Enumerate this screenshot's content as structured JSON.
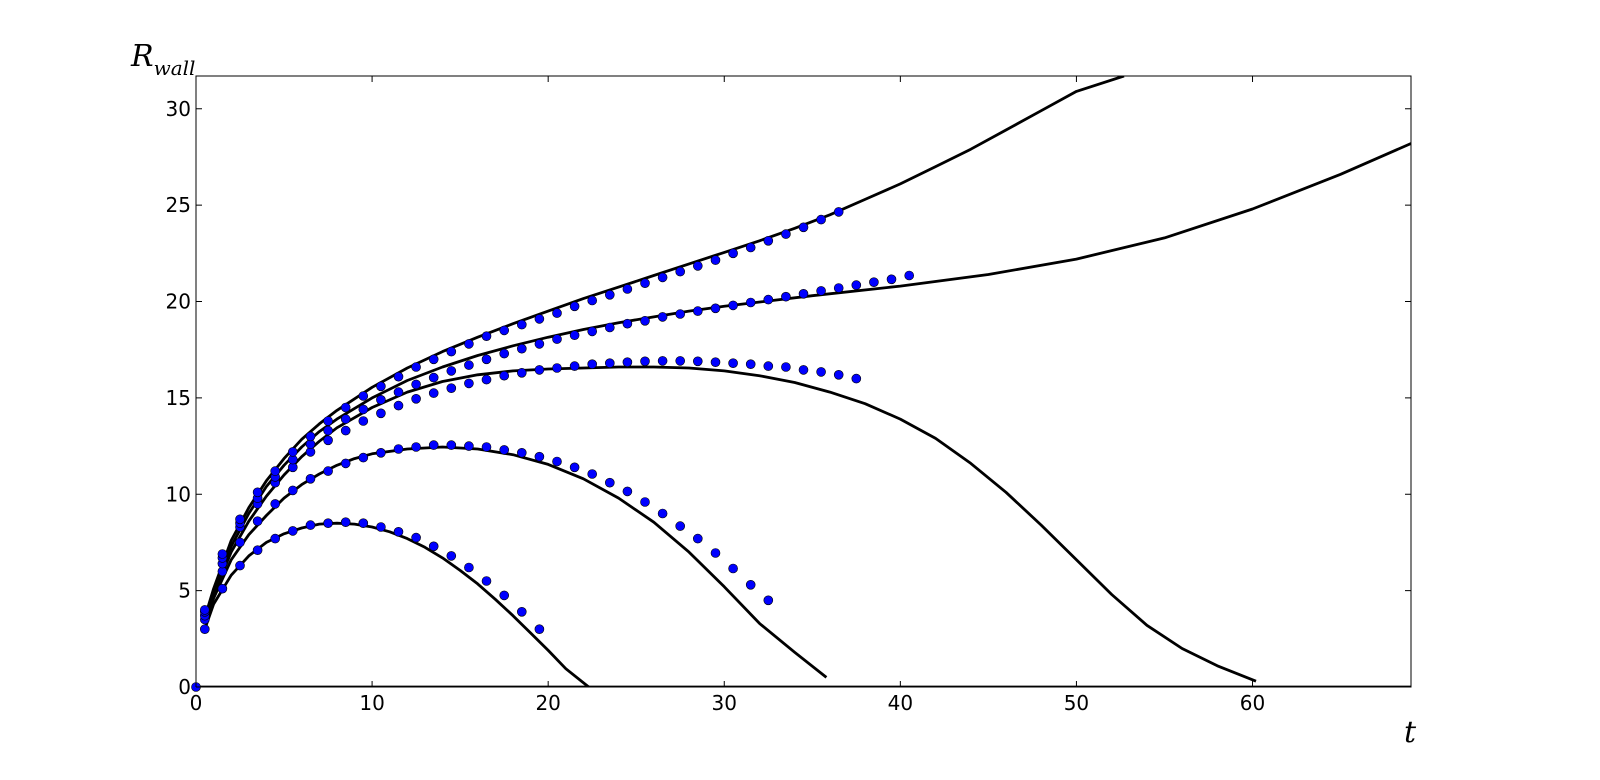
{
  "chart_data": {
    "type": "line",
    "title": "",
    "xlabel": "t",
    "ylabel_main": "R",
    "ylabel_sub": "wall",
    "xlim": [
      0,
      69
    ],
    "ylim": [
      0,
      31.7
    ],
    "xticks": [
      0,
      10,
      20,
      30,
      40,
      50,
      60
    ],
    "yticks": [
      0,
      5,
      10,
      15,
      20,
      25,
      30
    ],
    "grid": false,
    "legend": "none",
    "line_color": "#000000",
    "marker_color": "#0000ff",
    "series": [
      {
        "kind": "line",
        "points": [
          [
            0.5,
            3.0
          ],
          [
            1,
            4.3
          ],
          [
            2,
            5.8
          ],
          [
            3,
            6.8
          ],
          [
            4,
            7.5
          ],
          [
            5,
            7.95
          ],
          [
            6,
            8.25
          ],
          [
            7,
            8.45
          ],
          [
            8,
            8.5
          ],
          [
            9,
            8.45
          ],
          [
            10,
            8.3
          ],
          [
            11,
            8.05
          ],
          [
            12,
            7.7
          ],
          [
            13,
            7.25
          ],
          [
            14,
            6.7
          ],
          [
            15,
            6.05
          ],
          [
            16,
            5.35
          ],
          [
            17,
            4.55
          ],
          [
            18,
            3.7
          ],
          [
            19,
            2.8
          ],
          [
            20,
            1.9
          ],
          [
            21,
            0.95
          ],
          [
            22.3,
            0.0
          ]
        ]
      },
      {
        "kind": "scatter",
        "points": [
          [
            0.5,
            3.0
          ],
          [
            1.5,
            5.1
          ],
          [
            2.5,
            6.3
          ],
          [
            3.5,
            7.1
          ],
          [
            4.5,
            7.7
          ],
          [
            5.5,
            8.1
          ],
          [
            6.5,
            8.4
          ],
          [
            7.5,
            8.5
          ],
          [
            8.5,
            8.55
          ],
          [
            9.5,
            8.5
          ],
          [
            10.5,
            8.3
          ],
          [
            11.5,
            8.05
          ],
          [
            12.5,
            7.75
          ],
          [
            13.5,
            7.3
          ],
          [
            14.5,
            6.8
          ],
          [
            15.5,
            6.2
          ],
          [
            16.5,
            5.5
          ],
          [
            17.5,
            4.75
          ],
          [
            18.5,
            3.9
          ],
          [
            19.5,
            3.0
          ]
        ]
      },
      {
        "kind": "line",
        "points": [
          [
            0.5,
            3.3
          ],
          [
            1,
            4.6
          ],
          [
            2,
            6.6
          ],
          [
            3,
            7.9
          ],
          [
            4,
            8.9
          ],
          [
            5,
            9.8
          ],
          [
            6,
            10.5
          ],
          [
            7,
            11.05
          ],
          [
            8,
            11.5
          ],
          [
            9,
            11.85
          ],
          [
            10,
            12.1
          ],
          [
            12,
            12.35
          ],
          [
            14,
            12.45
          ],
          [
            16,
            12.35
          ],
          [
            18,
            12.05
          ],
          [
            20,
            11.55
          ],
          [
            22,
            10.8
          ],
          [
            24,
            9.8
          ],
          [
            26,
            8.55
          ],
          [
            28,
            7.0
          ],
          [
            30,
            5.2
          ],
          [
            32,
            3.3
          ],
          [
            34,
            1.8
          ],
          [
            35.8,
            0.5
          ]
        ]
      },
      {
        "kind": "scatter",
        "points": [
          [
            0.5,
            3.5
          ],
          [
            1.5,
            6.0
          ],
          [
            2.5,
            7.5
          ],
          [
            3.5,
            8.6
          ],
          [
            4.5,
            9.5
          ],
          [
            5.5,
            10.2
          ],
          [
            6.5,
            10.8
          ],
          [
            7.5,
            11.2
          ],
          [
            8.5,
            11.6
          ],
          [
            9.5,
            11.9
          ],
          [
            10.5,
            12.15
          ],
          [
            11.5,
            12.35
          ],
          [
            12.5,
            12.45
          ],
          [
            13.5,
            12.55
          ],
          [
            14.5,
            12.55
          ],
          [
            15.5,
            12.5
          ],
          [
            16.5,
            12.45
          ],
          [
            17.5,
            12.3
          ],
          [
            18.5,
            12.15
          ],
          [
            19.5,
            11.95
          ],
          [
            20.5,
            11.7
          ],
          [
            21.5,
            11.4
          ],
          [
            22.5,
            11.05
          ],
          [
            23.5,
            10.6
          ],
          [
            24.5,
            10.15
          ],
          [
            25.5,
            9.6
          ],
          [
            26.5,
            9.0
          ],
          [
            27.5,
            8.35
          ],
          [
            28.5,
            7.7
          ],
          [
            29.5,
            6.95
          ],
          [
            30.5,
            6.15
          ],
          [
            31.5,
            5.3
          ],
          [
            32.5,
            4.5
          ]
        ]
      },
      {
        "kind": "line",
        "points": [
          [
            0.5,
            3.4
          ],
          [
            1,
            4.8
          ],
          [
            2,
            7.0
          ],
          [
            3,
            8.6
          ],
          [
            4,
            9.9
          ],
          [
            5,
            11.0
          ],
          [
            6,
            11.95
          ],
          [
            7,
            12.75
          ],
          [
            8,
            13.45
          ],
          [
            10,
            14.5
          ],
          [
            12,
            15.3
          ],
          [
            14,
            15.85
          ],
          [
            16,
            16.2
          ],
          [
            18,
            16.4
          ],
          [
            20,
            16.5
          ],
          [
            22,
            16.55
          ],
          [
            24,
            16.6
          ],
          [
            26,
            16.6
          ],
          [
            28,
            16.55
          ],
          [
            30,
            16.4
          ],
          [
            32,
            16.15
          ],
          [
            34,
            15.8
          ],
          [
            36,
            15.3
          ],
          [
            38,
            14.7
          ],
          [
            40,
            13.9
          ],
          [
            42,
            12.9
          ],
          [
            44,
            11.6
          ],
          [
            46,
            10.1
          ],
          [
            48,
            8.4
          ],
          [
            50,
            6.6
          ],
          [
            52,
            4.8
          ],
          [
            54,
            3.2
          ],
          [
            56,
            2.0
          ],
          [
            58,
            1.1
          ],
          [
            60.2,
            0.3
          ]
        ]
      },
      {
        "kind": "scatter",
        "points": [
          [
            0.5,
            3.7
          ],
          [
            1.5,
            6.4
          ],
          [
            2.5,
            8.3
          ],
          [
            3.5,
            9.5
          ],
          [
            4.5,
            10.6
          ],
          [
            5.5,
            11.4
          ],
          [
            6.5,
            12.2
          ],
          [
            7.5,
            12.8
          ],
          [
            8.5,
            13.3
          ],
          [
            9.5,
            13.8
          ],
          [
            10.5,
            14.2
          ],
          [
            11.5,
            14.6
          ],
          [
            12.5,
            14.95
          ],
          [
            13.5,
            15.25
          ],
          [
            14.5,
            15.5
          ],
          [
            15.5,
            15.75
          ],
          [
            16.5,
            15.95
          ],
          [
            17.5,
            16.15
          ],
          [
            18.5,
            16.3
          ],
          [
            19.5,
            16.45
          ],
          [
            20.5,
            16.55
          ],
          [
            21.5,
            16.65
          ],
          [
            22.5,
            16.75
          ],
          [
            23.5,
            16.8
          ],
          [
            24.5,
            16.85
          ],
          [
            25.5,
            16.9
          ],
          [
            26.5,
            16.92
          ],
          [
            27.5,
            16.92
          ],
          [
            28.5,
            16.9
          ],
          [
            29.5,
            16.85
          ],
          [
            30.5,
            16.8
          ],
          [
            31.5,
            16.75
          ],
          [
            32.5,
            16.65
          ],
          [
            33.5,
            16.6
          ],
          [
            34.5,
            16.45
          ],
          [
            35.5,
            16.35
          ],
          [
            36.5,
            16.2
          ],
          [
            37.5,
            16.0
          ]
        ]
      },
      {
        "kind": "line",
        "points": [
          [
            0.5,
            3.5
          ],
          [
            1,
            5.0
          ],
          [
            2,
            7.3
          ],
          [
            3,
            9.0
          ],
          [
            4,
            10.4
          ],
          [
            5,
            11.5
          ],
          [
            6,
            12.45
          ],
          [
            7,
            13.25
          ],
          [
            8,
            13.9
          ],
          [
            10,
            15.0
          ],
          [
            12,
            15.9
          ],
          [
            14,
            16.6
          ],
          [
            16,
            17.2
          ],
          [
            18,
            17.7
          ],
          [
            20,
            18.15
          ],
          [
            22,
            18.55
          ],
          [
            24,
            18.9
          ],
          [
            26,
            19.2
          ],
          [
            28,
            19.5
          ],
          [
            30,
            19.75
          ],
          [
            35,
            20.3
          ],
          [
            40,
            20.8
          ],
          [
            45,
            21.4
          ],
          [
            50,
            22.2
          ],
          [
            55,
            23.3
          ],
          [
            60,
            24.8
          ],
          [
            65,
            26.6
          ],
          [
            69,
            28.2
          ]
        ]
      },
      {
        "kind": "scatter",
        "points": [
          [
            0.5,
            3.9
          ],
          [
            1.5,
            6.7
          ],
          [
            2.5,
            8.5
          ],
          [
            3.5,
            9.8
          ],
          [
            4.5,
            10.9
          ],
          [
            5.5,
            11.8
          ],
          [
            6.5,
            12.6
          ],
          [
            7.5,
            13.3
          ],
          [
            8.5,
            13.9
          ],
          [
            9.5,
            14.4
          ],
          [
            10.5,
            14.9
          ],
          [
            11.5,
            15.3
          ],
          [
            12.5,
            15.7
          ],
          [
            13.5,
            16.05
          ],
          [
            14.5,
            16.4
          ],
          [
            15.5,
            16.7
          ],
          [
            16.5,
            17.0
          ],
          [
            17.5,
            17.3
          ],
          [
            18.5,
            17.55
          ],
          [
            19.5,
            17.8
          ],
          [
            20.5,
            18.05
          ],
          [
            21.5,
            18.25
          ],
          [
            22.5,
            18.45
          ],
          [
            23.5,
            18.65
          ],
          [
            24.5,
            18.85
          ],
          [
            25.5,
            19.0
          ],
          [
            26.5,
            19.2
          ],
          [
            27.5,
            19.35
          ],
          [
            28.5,
            19.5
          ],
          [
            29.5,
            19.65
          ],
          [
            30.5,
            19.8
          ],
          [
            31.5,
            19.95
          ],
          [
            32.5,
            20.1
          ],
          [
            33.5,
            20.25
          ],
          [
            34.5,
            20.4
          ],
          [
            35.5,
            20.55
          ],
          [
            36.5,
            20.7
          ],
          [
            37.5,
            20.85
          ],
          [
            38.5,
            21.0
          ],
          [
            39.5,
            21.15
          ],
          [
            40.5,
            21.35
          ]
        ]
      },
      {
        "kind": "line",
        "points": [
          [
            0.5,
            3.6
          ],
          [
            1,
            5.1
          ],
          [
            2,
            7.6
          ],
          [
            3,
            9.3
          ],
          [
            4,
            10.7
          ],
          [
            5,
            11.85
          ],
          [
            6,
            12.85
          ],
          [
            7,
            13.65
          ],
          [
            8,
            14.35
          ],
          [
            10,
            15.55
          ],
          [
            12,
            16.55
          ],
          [
            14,
            17.4
          ],
          [
            16,
            18.15
          ],
          [
            18,
            18.85
          ],
          [
            20,
            19.5
          ],
          [
            22,
            20.15
          ],
          [
            24,
            20.75
          ],
          [
            26,
            21.35
          ],
          [
            28,
            21.95
          ],
          [
            30,
            22.55
          ],
          [
            32,
            23.15
          ],
          [
            34,
            23.8
          ],
          [
            36,
            24.5
          ],
          [
            38,
            25.3
          ],
          [
            40,
            26.1
          ],
          [
            42,
            27.0
          ],
          [
            44,
            27.9
          ],
          [
            46,
            28.9
          ],
          [
            48,
            29.9
          ],
          [
            50,
            30.9
          ],
          [
            52.7,
            31.7
          ]
        ]
      },
      {
        "kind": "scatter",
        "points": [
          [
            0.5,
            4.0
          ],
          [
            1.5,
            6.9
          ],
          [
            2.5,
            8.7
          ],
          [
            3.5,
            10.1
          ],
          [
            4.5,
            11.2
          ],
          [
            5.5,
            12.2
          ],
          [
            6.5,
            13.0
          ],
          [
            7.5,
            13.8
          ],
          [
            8.5,
            14.5
          ],
          [
            9.5,
            15.1
          ],
          [
            10.5,
            15.6
          ],
          [
            11.5,
            16.1
          ],
          [
            12.5,
            16.6
          ],
          [
            13.5,
            17.0
          ],
          [
            14.5,
            17.4
          ],
          [
            15.5,
            17.8
          ],
          [
            16.5,
            18.2
          ],
          [
            17.5,
            18.5
          ],
          [
            18.5,
            18.8
          ],
          [
            19.5,
            19.1
          ],
          [
            20.5,
            19.4
          ],
          [
            21.5,
            19.75
          ],
          [
            22.5,
            20.05
          ],
          [
            23.5,
            20.35
          ],
          [
            24.5,
            20.65
          ],
          [
            25.5,
            20.95
          ],
          [
            26.5,
            21.25
          ],
          [
            27.5,
            21.55
          ],
          [
            28.5,
            21.85
          ],
          [
            29.5,
            22.15
          ],
          [
            30.5,
            22.5
          ],
          [
            31.5,
            22.8
          ],
          [
            32.5,
            23.15
          ],
          [
            33.5,
            23.5
          ],
          [
            34.5,
            23.85
          ],
          [
            35.5,
            24.25
          ],
          [
            36.5,
            24.65
          ]
        ]
      },
      {
        "kind": "line",
        "points": [
          [
            0,
            0
          ],
          [
            69,
            0
          ]
        ]
      },
      {
        "kind": "scatter",
        "points": [
          [
            0,
            0
          ]
        ]
      }
    ]
  }
}
